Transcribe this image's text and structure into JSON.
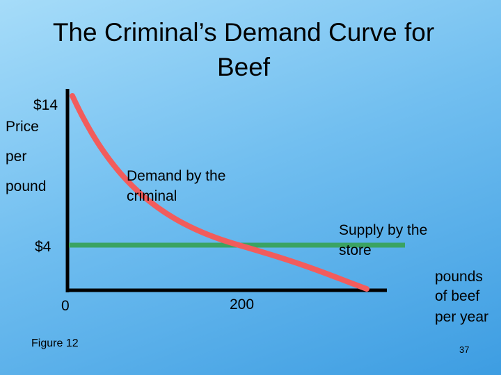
{
  "header": {
    "title": "The Criminal’s Demand Curve for Beef"
  },
  "axes": {
    "y_label": [
      "Price",
      "per",
      "pound"
    ],
    "y_high": "$14",
    "y_low": "$4",
    "x_origin": "0",
    "x_mark": "200",
    "x_label": [
      "pounds",
      "of beef",
      "per year"
    ]
  },
  "annotations": {
    "demand": [
      "Demand by the",
      "criminal"
    ],
    "supply": [
      "Supply by the",
      "store"
    ]
  },
  "footer": {
    "figure": "Figure 12",
    "page": "37"
  }
}
